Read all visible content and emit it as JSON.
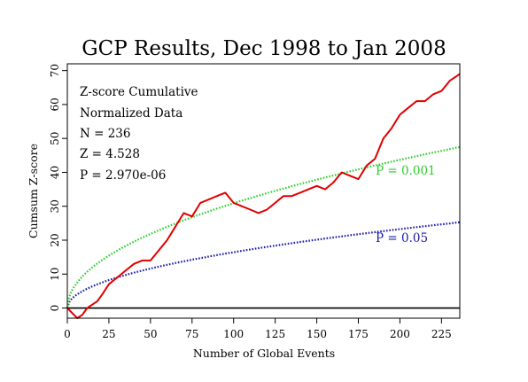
{
  "chart_data": {
    "type": "line",
    "title": "GCP Results, Dec 1998 to Jan 2008",
    "xlabel": "Number of Global Events",
    "ylabel": "Cumsum Z-score",
    "xlim": [
      0,
      236
    ],
    "ylim": [
      -3,
      72
    ],
    "x_ticks": [
      "0",
      "25",
      "50",
      "75",
      "100",
      "125",
      "150",
      "175",
      "200",
      "225"
    ],
    "y_ticks": [
      "0",
      "10",
      "20",
      "30",
      "40",
      "50",
      "60",
      "70"
    ],
    "grid": false,
    "stats": {
      "line1": "Z-score Cumulative",
      "line2": "Normalized Data",
      "line3": "N = 236",
      "line4": "Z = 4.528",
      "line5": "P = 2.970e-06"
    },
    "series": [
      {
        "name": "",
        "color": "#e00000",
        "style": "solid",
        "x": [
          0,
          3,
          6,
          9,
          12,
          15,
          18,
          21,
          25,
          30,
          35,
          40,
          45,
          50,
          55,
          60,
          65,
          70,
          75,
          80,
          85,
          90,
          95,
          100,
          105,
          110,
          115,
          120,
          125,
          130,
          135,
          140,
          145,
          150,
          155,
          160,
          165,
          170,
          175,
          180,
          185,
          190,
          195,
          200,
          205,
          210,
          215,
          220,
          225,
          230,
          236
        ],
        "y": [
          0,
          -1.5,
          -3,
          -2,
          0,
          1,
          2,
          4,
          7,
          9,
          11,
          13,
          14,
          14,
          17,
          20,
          24,
          28,
          27,
          31,
          32,
          33,
          34,
          31,
          30,
          29,
          28,
          29,
          31,
          33,
          33,
          34,
          35,
          36,
          35,
          37,
          40,
          39,
          38,
          42,
          44,
          50,
          53,
          57,
          59,
          61,
          61,
          63,
          64,
          67,
          69
        ]
      },
      {
        "name": "",
        "label": "P = 0.001",
        "color": "#2ecc2e",
        "style": "dotted",
        "formula_coef": 3.09
      },
      {
        "name": "",
        "label": "P = 0.05",
        "color": "#1a1aaa",
        "style": "dotted",
        "formula_coef": 1.645
      }
    ]
  }
}
